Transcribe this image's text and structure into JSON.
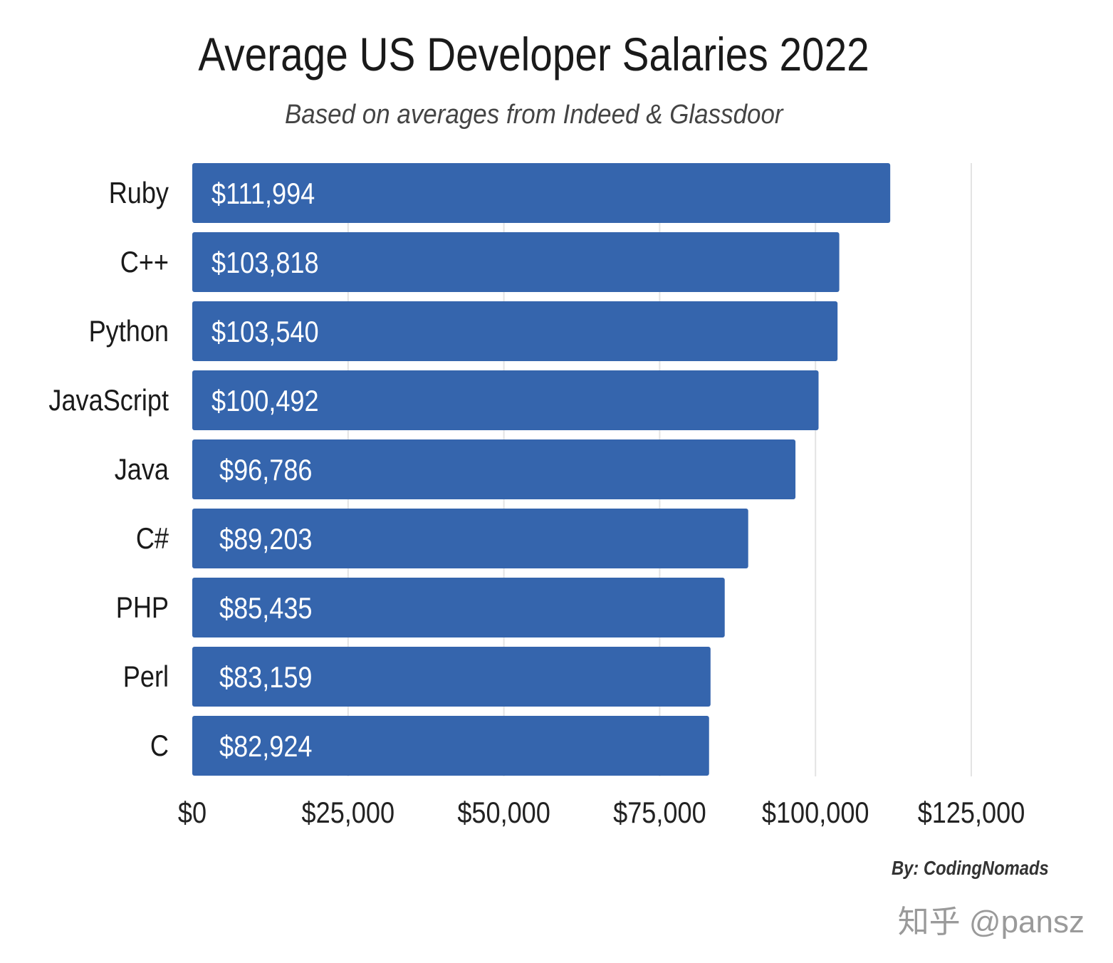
{
  "chart_data": {
    "type": "bar",
    "orientation": "horizontal",
    "title": "Average US Developer Salaries 2022",
    "subtitle": "Based on averages from Indeed & Glassdoor",
    "categories": [
      "Ruby",
      "C++",
      "Python",
      "JavaScript",
      "Java",
      "C#",
      "PHP",
      "Perl",
      "C"
    ],
    "values": [
      111994,
      103818,
      103540,
      100492,
      96786,
      89203,
      85435,
      83159,
      82924
    ],
    "data_labels": [
      "$111,994",
      "$103,818",
      "$103,540",
      "$100,492",
      "$96,786",
      "$89,203",
      "$85,435",
      "$83,159",
      "$82,924"
    ],
    "xlim": [
      0,
      125000
    ],
    "xticks": [
      0,
      25000,
      50000,
      75000,
      100000,
      125000
    ],
    "xtick_labels": [
      "$0",
      "$25,000",
      "$50,000",
      "$75,000",
      "$100,000",
      "$125,000"
    ],
    "xlabel": "",
    "ylabel": "",
    "grid": true,
    "bar_color": "#3565ad",
    "label_color": "#ffffff"
  },
  "credit": "By: CodingNomads",
  "watermark": "知乎 @pansz"
}
